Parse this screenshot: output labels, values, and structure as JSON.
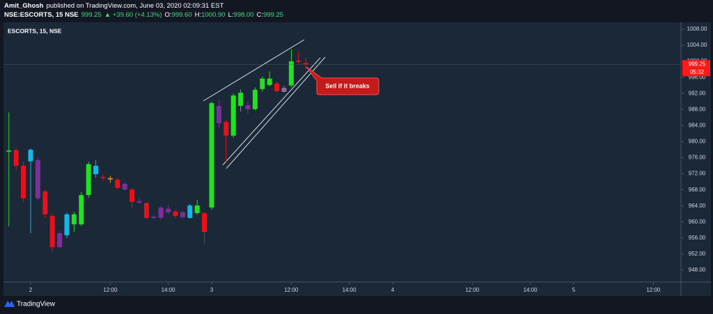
{
  "header": {
    "author": "Amit_Ghosh",
    "published": "published on TradingView.com, June 03, 2020 02:09:31 EST",
    "symbol": "NSE:ESCORTS, 15 NSE",
    "price": "999.25",
    "change": "▲ +39.60 (+4.13%)",
    "ohlc": [
      {
        "key": "O:",
        "value": "999.60"
      },
      {
        "key": "H:",
        "value": "1000.90"
      },
      {
        "key": "L:",
        "value": "998.00"
      },
      {
        "key": "C:",
        "value": "999.25"
      }
    ]
  },
  "footer": {
    "brand": "TradingView"
  },
  "chart_data": {
    "type": "candlestick",
    "title": "ESCORTS, 15, NSE",
    "annotation": "Sell if it breaks",
    "last_price": 999.25,
    "last_price_color": "#ff1a1a",
    "countdown": "05:32",
    "grid": false,
    "xlim": [
      -3.75,
      89.81
    ],
    "ylim": [
      945.05,
      1009.73
    ],
    "xticks": [
      {
        "value": 0,
        "label": "2"
      },
      {
        "value": 11,
        "label": "12:00"
      },
      {
        "value": 19,
        "label": "14:00"
      },
      {
        "value": 25,
        "label": "3"
      },
      {
        "value": 36,
        "label": "12:00"
      },
      {
        "value": 44,
        "label": "14:00"
      },
      {
        "value": 50,
        "label": "4"
      },
      {
        "value": 61,
        "label": "12:00"
      },
      {
        "value": 69,
        "label": "14:00"
      },
      {
        "value": 75,
        "label": "5"
      },
      {
        "value": 86,
        "label": "12:00"
      }
    ],
    "yticks": [
      {
        "value": 1008,
        "label": "1008.00"
      },
      {
        "value": 1004,
        "label": "1004.00"
      },
      {
        "value": 1000,
        "label": "1000.00"
      },
      {
        "value": 996,
        "label": "996.00"
      },
      {
        "value": 992,
        "label": "992.00"
      },
      {
        "value": 988,
        "label": "988.00"
      },
      {
        "value": 984,
        "label": "984.00"
      },
      {
        "value": 980,
        "label": "980.00"
      },
      {
        "value": 976,
        "label": "976.00"
      },
      {
        "value": 972,
        "label": "972.00"
      },
      {
        "value": 968,
        "label": "968.00"
      },
      {
        "value": 964,
        "label": "964.00"
      },
      {
        "value": 960,
        "label": "960.00"
      },
      {
        "value": 956,
        "label": "956.00"
      },
      {
        "value": 952,
        "label": "952.00"
      },
      {
        "value": 948,
        "label": "948.00"
      }
    ],
    "candles": [
      {
        "x": -3,
        "open": 977.5,
        "high": 987.3,
        "low": 958.9,
        "close": 977.8,
        "color": "#22e022"
      },
      {
        "x": -2,
        "open": 977.9,
        "high": 978.5,
        "low": 973.0,
        "close": 974.0,
        "color": "#e8101a"
      },
      {
        "x": -1,
        "open": 974.0,
        "high": 975.0,
        "low": 965.0,
        "close": 965.9,
        "color": "#e8101a"
      },
      {
        "x": 0,
        "open": 975.1,
        "high": 978.3,
        "low": 957.2,
        "close": 978.0,
        "color": "#17b6e6"
      },
      {
        "x": 1,
        "open": 975.4,
        "high": 976.0,
        "low": 965.5,
        "close": 965.9,
        "color": "#7b2f9b"
      },
      {
        "x": 2,
        "open": 967.6,
        "high": 968.0,
        "low": 961.0,
        "close": 961.9,
        "color": "#e8101a"
      },
      {
        "x": 3,
        "open": 961.5,
        "high": 962.0,
        "low": 952.5,
        "close": 953.7,
        "color": "#e8101a"
      },
      {
        "x": 4,
        "open": 953.7,
        "high": 957.8,
        "low": 953.5,
        "close": 957.2,
        "color": "#7b2f9b"
      },
      {
        "x": 5,
        "open": 956.7,
        "high": 962.3,
        "low": 956.0,
        "close": 961.9,
        "color": "#17b6e6"
      },
      {
        "x": 6,
        "open": 959.4,
        "high": 962.5,
        "low": 957.5,
        "close": 961.9,
        "color": "#22e022"
      },
      {
        "x": 7,
        "open": 959.4,
        "high": 967.5,
        "low": 959.0,
        "close": 966.7,
        "color": "#22e022"
      },
      {
        "x": 8,
        "open": 966.7,
        "high": 975.0,
        "low": 966.0,
        "close": 974.4,
        "color": "#22e022"
      },
      {
        "x": 9,
        "open": 971.9,
        "high": 975.5,
        "low": 971.0,
        "close": 974.0,
        "color": "#17b6e6"
      },
      {
        "x": 10,
        "open": 971.2,
        "high": 971.8,
        "low": 970.3,
        "close": 971.0,
        "color": "#e8101a"
      },
      {
        "x": 11,
        "open": 970.9,
        "high": 971.5,
        "low": 969.8,
        "close": 970.6,
        "color": "#d4a017"
      },
      {
        "x": 12,
        "open": 970.5,
        "high": 971.0,
        "low": 968.0,
        "close": 968.5,
        "color": "#e8101a"
      },
      {
        "x": 13,
        "open": 969.5,
        "high": 970.0,
        "low": 967.8,
        "close": 968.1,
        "color": "#7b2f9b"
      },
      {
        "x": 14,
        "open": 968.1,
        "high": 968.5,
        "low": 963.5,
        "close": 965.0,
        "color": "#e8101a"
      },
      {
        "x": 15,
        "open": 965.2,
        "high": 966.0,
        "low": 964.5,
        "close": 964.8,
        "color": "#7b2f9b"
      },
      {
        "x": 16,
        "open": 964.7,
        "high": 965.0,
        "low": 960.8,
        "close": 961.0,
        "color": "#e8101a"
      },
      {
        "x": 17,
        "open": 961.3,
        "high": 961.8,
        "low": 960.8,
        "close": 961.0,
        "color": "#7b2f9b"
      },
      {
        "x": 18,
        "open": 963.6,
        "high": 964.0,
        "low": 960.5,
        "close": 961.0,
        "color": "#7b2f9b"
      },
      {
        "x": 19,
        "open": 963.3,
        "high": 964.3,
        "low": 962.0,
        "close": 962.4,
        "color": "#7b2f9b"
      },
      {
        "x": 20,
        "open": 962.6,
        "high": 963.0,
        "low": 961.0,
        "close": 961.5,
        "color": "#e8101a"
      },
      {
        "x": 21,
        "open": 962.4,
        "high": 962.8,
        "low": 960.8,
        "close": 961.2,
        "color": "#7b2f9b"
      },
      {
        "x": 22,
        "open": 961.0,
        "high": 964.5,
        "low": 960.8,
        "close": 964.1,
        "color": "#17b6e6"
      },
      {
        "x": 23,
        "open": 962.2,
        "high": 965.5,
        "low": 961.8,
        "close": 964.1,
        "color": "#22e022"
      },
      {
        "x": 24,
        "open": 962.2,
        "high": 962.5,
        "low": 954.5,
        "close": 957.5,
        "color": "#e8101a"
      },
      {
        "x": 25,
        "open": 963.6,
        "high": 990.0,
        "low": 963.0,
        "close": 989.6,
        "color": "#22e022"
      },
      {
        "x": 26,
        "open": 988.9,
        "high": 990.5,
        "low": 983.5,
        "close": 984.6,
        "color": "#7b2f9b"
      },
      {
        "x": 27,
        "open": 984.9,
        "high": 985.5,
        "low": 975.0,
        "close": 981.5,
        "color": "#e8101a"
      },
      {
        "x": 28,
        "open": 981.5,
        "high": 992.0,
        "low": 981.0,
        "close": 991.5,
        "color": "#22e022"
      },
      {
        "x": 29,
        "open": 988.9,
        "high": 993.0,
        "low": 987.5,
        "close": 992.2,
        "color": "#22e022"
      },
      {
        "x": 30,
        "open": 989.1,
        "high": 990.0,
        "low": 987.0,
        "close": 988.1,
        "color": "#7b2f9b"
      },
      {
        "x": 31,
        "open": 988.1,
        "high": 993.5,
        "low": 987.8,
        "close": 992.9,
        "color": "#22e022"
      },
      {
        "x": 32,
        "open": 993.1,
        "high": 996.2,
        "low": 992.5,
        "close": 995.7,
        "color": "#22e022"
      },
      {
        "x": 33,
        "open": 994.1,
        "high": 997.5,
        "low": 993.8,
        "close": 995.7,
        "color": "#22e022"
      },
      {
        "x": 34,
        "open": 994.5,
        "high": 995.0,
        "low": 992.2,
        "close": 992.6,
        "color": "#e8101a"
      },
      {
        "x": 35,
        "open": 992.4,
        "high": 994.0,
        "low": 992.2,
        "close": 993.4,
        "color": "#8a6fa0"
      },
      {
        "x": 36,
        "open": 994.0,
        "high": 1003.0,
        "low": 993.5,
        "close": 1000.0,
        "color": "#22e022"
      },
      {
        "x": 37,
        "open": 1000.2,
        "high": 1002.5,
        "low": 999.5,
        "close": 999.9,
        "color": "#e8101a"
      },
      {
        "x": 38,
        "open": 999.6,
        "high": 1000.9,
        "low": 998.0,
        "close": 999.25,
        "color": "#e8101a"
      }
    ]
  }
}
